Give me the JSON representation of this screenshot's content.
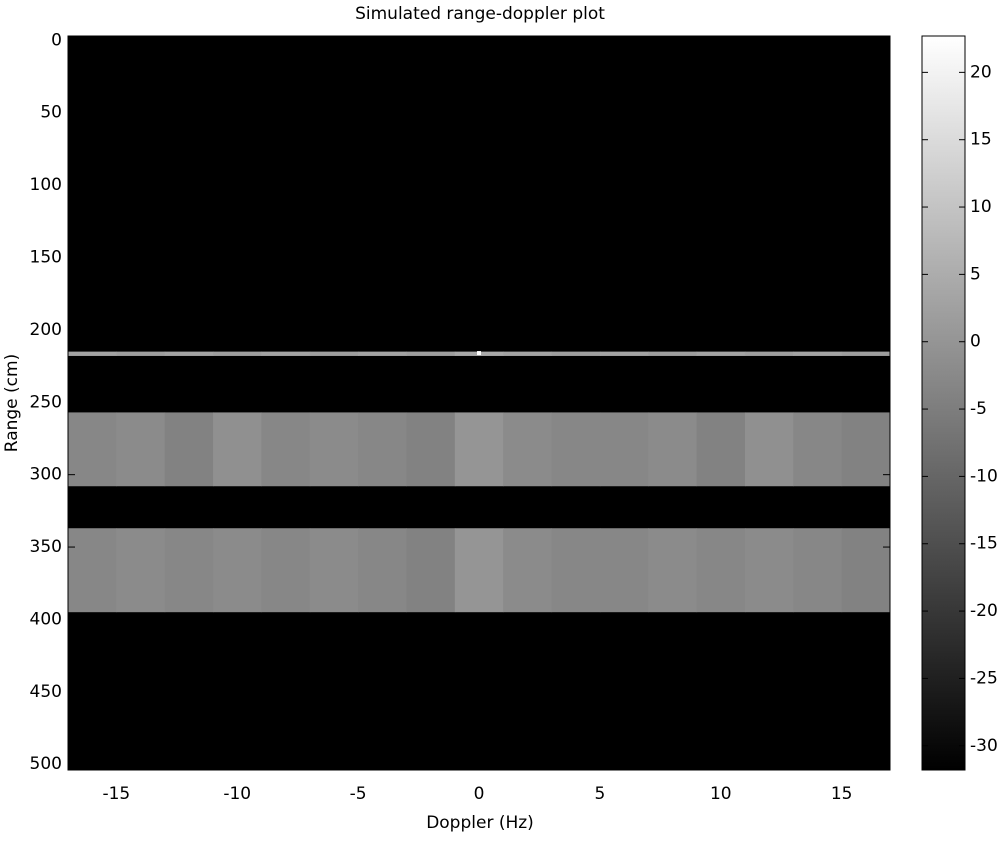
{
  "chart_data": {
    "type": "heatmap",
    "title": "Simulated range-doppler plot",
    "x_label": "Doppler (Hz)",
    "y_label": "Range (cm)",
    "xlim": [
      -17,
      17
    ],
    "xticks": [
      -15,
      -10,
      -5,
      0,
      5,
      10,
      15
    ],
    "ylim": [
      -3,
      504
    ],
    "y_reversed": true,
    "yticks": [
      0,
      50,
      100,
      150,
      200,
      250,
      300,
      350,
      400,
      450,
      500
    ],
    "colormap": "gray",
    "clim": [
      -31.8,
      22.7
    ],
    "cticks": [
      -30,
      -25,
      -20,
      -15,
      -10,
      -5,
      0,
      5,
      10,
      15,
      20
    ],
    "background": -31.8,
    "x_bins": [
      -17,
      -15,
      -13,
      -11,
      -9,
      -7,
      -5,
      -3,
      -1,
      1,
      3,
      5,
      7,
      9,
      11,
      13,
      15,
      17
    ],
    "bands": [
      {
        "range": [
          215,
          218
        ],
        "values": [
          3,
          2,
          3,
          2,
          3,
          2,
          3,
          2,
          4,
          3,
          2,
          3,
          2,
          3,
          2,
          3,
          2
        ]
      },
      {
        "range": [
          257,
          308
        ],
        "values": [
          -3,
          -2,
          -4,
          -1,
          -3,
          -2,
          -3,
          -4,
          0,
          -2,
          -3,
          -3,
          -2,
          -4,
          -1,
          -3,
          -4
        ]
      },
      {
        "range": [
          337,
          395
        ],
        "values": [
          -3,
          -2,
          -3,
          -2,
          -3,
          -2,
          -3,
          -4,
          0,
          -2,
          -3,
          -3,
          -2,
          -3,
          -2,
          -3,
          -4
        ]
      }
    ],
    "peak": {
      "x": 0,
      "y": 216,
      "value": 22
    }
  }
}
